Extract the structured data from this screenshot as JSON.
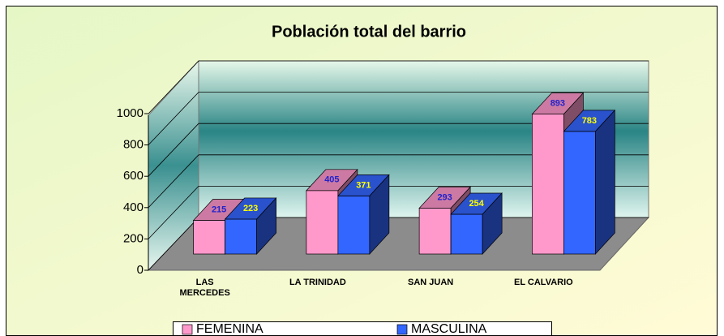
{
  "chart_data": {
    "type": "bar",
    "title": "Población total del barrio",
    "categories": [
      "LAS MERCEDES",
      "LA TRINIDAD",
      "SAN JUAN",
      "EL CALVARIO"
    ],
    "series": [
      {
        "name": "FEMENINA",
        "color": "#ff99cc",
        "values": [
          215,
          405,
          293,
          893
        ]
      },
      {
        "name": "MASCULINA",
        "color": "#3366ff",
        "values": [
          223,
          371,
          254,
          783
        ]
      }
    ],
    "ylim": [
      0,
      1000
    ],
    "yticks": [
      0,
      200,
      400,
      600,
      800,
      1000
    ],
    "grid": true,
    "legend": "bottom"
  }
}
